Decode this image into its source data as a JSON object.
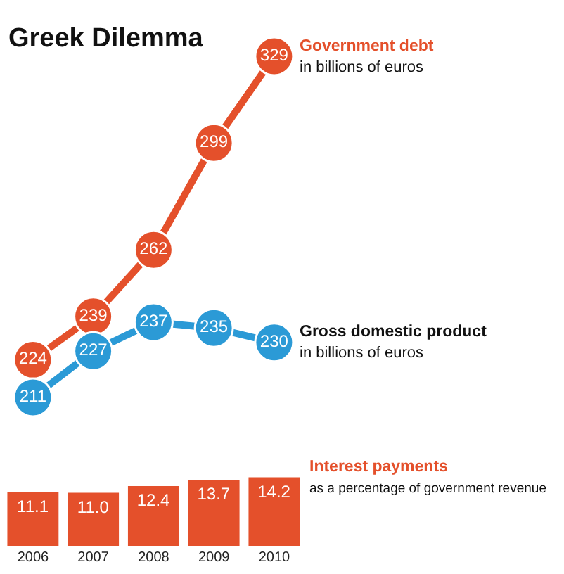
{
  "chart_data": [
    {
      "type": "line",
      "title": "Greek Dilemma",
      "categories": [
        "2006",
        "2007",
        "2008",
        "2009",
        "2010"
      ],
      "series": [
        {
          "name": "Government debt",
          "color": "#e4502b",
          "values": [
            224,
            239,
            262,
            299,
            329
          ]
        },
        {
          "name": "Gross domestic product",
          "color": "#2b9ad6",
          "values": [
            211,
            227,
            237,
            235,
            230
          ]
        }
      ],
      "annotations": [
        {
          "text": "in billions of euros",
          "x": "2010",
          "y": 329
        },
        {
          "text": "in billions of euros",
          "x": "2010",
          "y": 230
        }
      ],
      "data_labels": true,
      "marker": "circle",
      "line_style": "solid",
      "legend": false,
      "tick_labels": false
    },
    {
      "type": "bar",
      "categories": [
        "2006",
        "2007",
        "2008",
        "2009",
        "2010"
      ],
      "series": [
        {
          "name": "Interest payments",
          "color": "#e4502b",
          "values": [
            11.1,
            11.0,
            12.4,
            13.7,
            14.2
          ],
          "value_labels": [
            "11.1",
            "11.0",
            "12.4",
            "13.7",
            "14.2"
          ]
        }
      ],
      "annotations": [
        {
          "text": "as a percentage of government revenue",
          "x": "2010",
          "y": 14.2
        }
      ],
      "legend": false,
      "tick_labels": "x"
    }
  ]
}
